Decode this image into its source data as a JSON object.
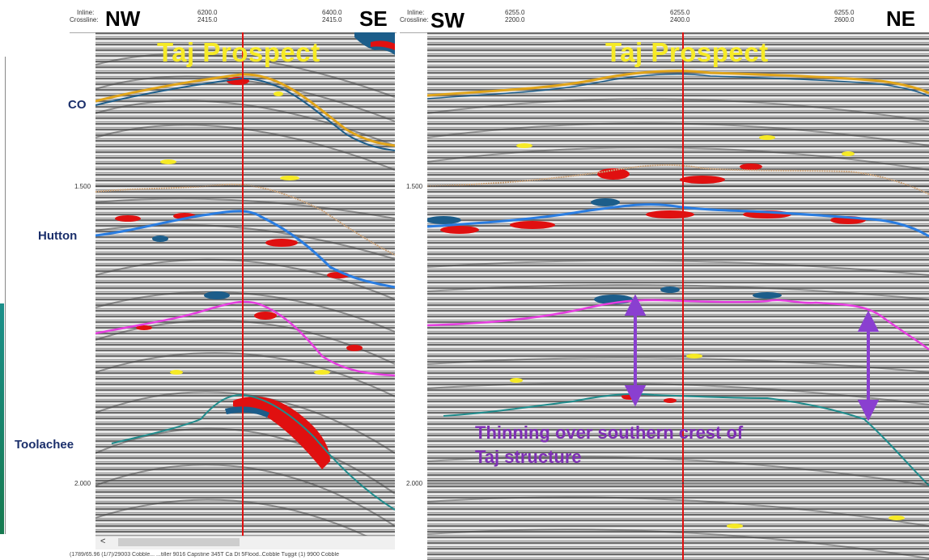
{
  "left_panel": {
    "hdr_inline_label": "Inline:",
    "hdr_crossline_label": "Crossline:",
    "dir_left": "NW",
    "dir_right": "SE",
    "trace_a_inline": "6200.0",
    "trace_a_crossline": "2415.0",
    "trace_b_inline": "6400.0",
    "trace_b_crossline": "2415.0",
    "title": "Taj Prospect",
    "time_ticks": [
      "1.500",
      "2.000"
    ],
    "scroll_arrow": "<",
    "footer_text": "(1789/65.96 (1/7)/29003 Cobble... ...tiller 9016 Capstine 345T Ca Dt 5Flood..Cobble Tuggit (1) 9900 Cobble"
  },
  "right_panel": {
    "hdr_inline_label": "Inline:",
    "hdr_crossline_label": "Crossline:",
    "dir_left": "SW",
    "dir_right": "NE",
    "trace_a_inline": "6255.0",
    "trace_a_crossline": "2200.0",
    "trace_b_inline": "6255.0",
    "trace_b_crossline": "2400.0",
    "trace_c_inline": "6255.0",
    "trace_c_crossline": "2600.0",
    "title": "Taj Prospect",
    "time_ticks": [
      "1.500",
      "2.000"
    ],
    "annotation_line1": "Thinning over southern crest of",
    "annotation_line2": "Taj structure"
  },
  "horizon_labels": {
    "co": "CO",
    "hutton": "Hutton",
    "toolachee": "Toolachee"
  },
  "colors": {
    "title_yellow": "#f6ea26",
    "label_navy": "#1b2f6b",
    "annotation_purple": "#7f2fb5",
    "horizon_co": "#e0a41a",
    "horizon_hutton": "#2a7de1",
    "horizon_magenta": "#e63de0",
    "horizon_toolachee": "#1f8c8c",
    "well_line": "#e01010",
    "arrow_purple": "#8a3fd0"
  }
}
